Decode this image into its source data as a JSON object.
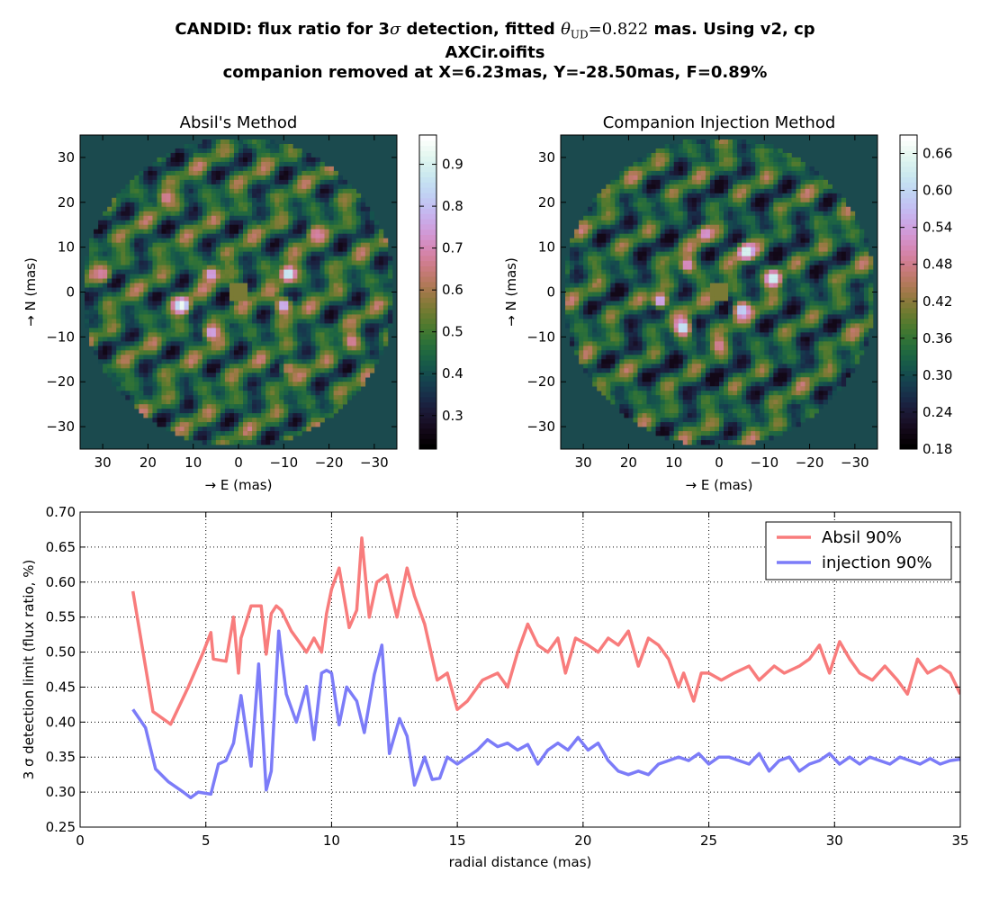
{
  "suptitle": {
    "line1_prefix": "CANDID: flux ratio for 3",
    "line1_sigma": "σ",
    "line1_mid": " detection, fitted ",
    "line1_theta": "θ",
    "line1_sub": "UD",
    "line1_eq": "=0.822",
    "line1_suffix": " mas. Using v2, cp",
    "line2": "AXCir.oifits",
    "line3": "companion removed at X=6.23mas, Y=-28.50mas, F=0.89%"
  },
  "colors": {
    "absil": "#f87c7c",
    "injection": "#7c7cf8",
    "map_background": "#1b4a4e"
  },
  "chart_data": [
    {
      "type": "heatmap",
      "title": "Absil's Method",
      "xlabel": "→ E (mas)",
      "ylabel": "→ N (mas)",
      "xlim": [
        35,
        -35
      ],
      "ylim": [
        -35,
        35
      ],
      "xticks": [
        30,
        20,
        10,
        0,
        -10,
        -20,
        -30
      ],
      "yticks": [
        30,
        20,
        10,
        0,
        -10,
        -20,
        -30
      ],
      "colorbar": {
        "ticks": [
          0.3,
          0.4,
          0.5,
          0.6,
          0.7,
          0.8,
          0.9
        ],
        "range": [
          0.22,
          0.97
        ]
      },
      "colormap": "cubehelix",
      "peaks": [
        {
          "x": 12.5,
          "y": -3,
          "value": 0.97
        },
        {
          "x": -11,
          "y": 4,
          "value": 0.95
        },
        {
          "x": 6,
          "y": 4,
          "value": 0.8
        },
        {
          "x": 6,
          "y": -9,
          "value": 0.8
        },
        {
          "x": -10,
          "y": -3,
          "value": 0.85
        },
        {
          "x": -17,
          "y": 13,
          "value": 0.7
        },
        {
          "x": 16,
          "y": 21,
          "value": 0.7
        },
        {
          "x": 30,
          "y": 4,
          "value": 0.7
        },
        {
          "x": -25,
          "y": -11,
          "value": 0.7
        },
        {
          "x": -11,
          "y": -17,
          "value": 0.65
        }
      ]
    },
    {
      "type": "heatmap",
      "title": "Companion Injection Method",
      "xlabel": "→ E (mas)",
      "ylabel": "→ N (mas)",
      "xlim": [
        35,
        -35
      ],
      "ylim": [
        -35,
        35
      ],
      "xticks": [
        30,
        20,
        10,
        0,
        -10,
        -20,
        -30
      ],
      "yticks": [
        30,
        20,
        10,
        0,
        -10,
        -20,
        -30
      ],
      "colorbar": {
        "ticks": [
          0.18,
          0.24,
          0.3,
          0.36,
          0.42,
          0.48,
          0.54,
          0.6,
          0.66
        ],
        "range": [
          0.18,
          0.69
        ]
      },
      "colormap": "cubehelix",
      "peaks": [
        {
          "x": -6,
          "y": 9,
          "value": 0.69
        },
        {
          "x": -12,
          "y": 3,
          "value": 0.68
        },
        {
          "x": 8,
          "y": -8,
          "value": 0.66
        },
        {
          "x": -5,
          "y": -4,
          "value": 0.62
        },
        {
          "x": 13,
          "y": -2,
          "value": 0.6
        },
        {
          "x": 7,
          "y": 6,
          "value": 0.55
        },
        {
          "x": 3,
          "y": 13,
          "value": 0.55
        },
        {
          "x": 0,
          "y": -12,
          "value": 0.5
        }
      ]
    },
    {
      "type": "line",
      "xlabel": "radial distance (mas)",
      "ylabel": "3 σ detection limit (flux ratio, %)",
      "xlim": [
        0,
        35
      ],
      "ylim": [
        0.25,
        0.7
      ],
      "xticks": [
        0,
        5,
        10,
        15,
        20,
        25,
        30,
        35
      ],
      "yticks": [
        0.25,
        0.3,
        0.35,
        0.4,
        0.45,
        0.5,
        0.55,
        0.6,
        0.65,
        0.7
      ],
      "grid": true,
      "legend": "top-right",
      "series": [
        {
          "name": "Absil 90%",
          "color": "#f87c7c",
          "x": [
            2.1,
            2.9,
            3.6,
            4.3,
            4.9,
            5.2,
            5.3,
            5.8,
            6.1,
            6.3,
            6.4,
            6.8,
            7.2,
            7.4,
            7.6,
            7.8,
            8.0,
            8.4,
            9.0,
            9.3,
            9.6,
            9.8,
            10.0,
            10.3,
            10.7,
            11.0,
            11.2,
            11.5,
            11.8,
            12.2,
            12.6,
            13.0,
            13.3,
            13.7,
            14.2,
            14.6,
            15.0,
            15.4,
            16.0,
            16.6,
            17.0,
            17.4,
            17.8,
            18.2,
            18.6,
            19.0,
            19.3,
            19.7,
            20.2,
            20.6,
            21.0,
            21.4,
            21.8,
            22.2,
            22.6,
            23.0,
            23.4,
            23.8,
            24.0,
            24.4,
            24.7,
            25.0,
            25.5,
            26.0,
            26.6,
            27.0,
            27.6,
            28.0,
            28.6,
            29.0,
            29.4,
            29.8,
            30.2,
            30.6,
            31.0,
            31.5,
            32.0,
            32.5,
            32.9,
            33.3,
            33.7,
            34.2,
            34.6,
            35.0
          ],
          "y": [
            0.587,
            0.415,
            0.397,
            0.45,
            0.5,
            0.528,
            0.49,
            0.487,
            0.55,
            0.47,
            0.52,
            0.566,
            0.566,
            0.497,
            0.555,
            0.566,
            0.56,
            0.53,
            0.5,
            0.52,
            0.5,
            0.555,
            0.59,
            0.62,
            0.535,
            0.56,
            0.663,
            0.55,
            0.6,
            0.61,
            0.55,
            0.62,
            0.58,
            0.54,
            0.46,
            0.47,
            0.418,
            0.43,
            0.46,
            0.47,
            0.45,
            0.5,
            0.54,
            0.51,
            0.5,
            0.52,
            0.47,
            0.52,
            0.51,
            0.5,
            0.52,
            0.51,
            0.53,
            0.48,
            0.52,
            0.51,
            0.49,
            0.45,
            0.47,
            0.43,
            0.47,
            0.47,
            0.46,
            0.47,
            0.48,
            0.46,
            0.48,
            0.47,
            0.48,
            0.49,
            0.51,
            0.47,
            0.515,
            0.49,
            0.47,
            0.46,
            0.48,
            0.46,
            0.44,
            0.49,
            0.47,
            0.48,
            0.47,
            0.44
          ]
        },
        {
          "name": "injection 90%",
          "color": "#7c7cf8",
          "x": [
            2.1,
            2.6,
            3.0,
            3.5,
            4.1,
            4.4,
            4.7,
            5.2,
            5.5,
            5.8,
            6.1,
            6.4,
            6.8,
            7.1,
            7.4,
            7.6,
            7.9,
            8.2,
            8.6,
            9.0,
            9.3,
            9.6,
            9.8,
            10.0,
            10.3,
            10.6,
            11.0,
            11.3,
            11.7,
            12.0,
            12.3,
            12.7,
            13.0,
            13.3,
            13.7,
            14.0,
            14.3,
            14.6,
            15.0,
            15.4,
            15.8,
            16.2,
            16.6,
            17.0,
            17.4,
            17.8,
            18.2,
            18.6,
            19.0,
            19.4,
            19.8,
            20.2,
            20.6,
            21.0,
            21.4,
            21.8,
            22.2,
            22.6,
            23.0,
            23.4,
            23.8,
            24.2,
            24.6,
            25.0,
            25.4,
            25.8,
            26.2,
            26.6,
            27.0,
            27.4,
            27.8,
            28.2,
            28.6,
            29.0,
            29.4,
            29.8,
            30.2,
            30.6,
            31.0,
            31.4,
            31.8,
            32.2,
            32.6,
            33.0,
            33.4,
            33.8,
            34.2,
            34.6,
            35.0
          ],
          "y": [
            0.418,
            0.392,
            0.333,
            0.315,
            0.3,
            0.292,
            0.3,
            0.297,
            0.34,
            0.345,
            0.37,
            0.438,
            0.337,
            0.483,
            0.303,
            0.33,
            0.53,
            0.44,
            0.4,
            0.451,
            0.375,
            0.47,
            0.474,
            0.47,
            0.396,
            0.45,
            0.43,
            0.385,
            0.468,
            0.51,
            0.355,
            0.405,
            0.38,
            0.31,
            0.35,
            0.318,
            0.32,
            0.35,
            0.34,
            0.35,
            0.36,
            0.375,
            0.365,
            0.37,
            0.36,
            0.368,
            0.34,
            0.36,
            0.37,
            0.36,
            0.378,
            0.36,
            0.37,
            0.345,
            0.33,
            0.325,
            0.33,
            0.325,
            0.34,
            0.345,
            0.35,
            0.345,
            0.355,
            0.34,
            0.35,
            0.35,
            0.345,
            0.34,
            0.355,
            0.33,
            0.345,
            0.35,
            0.33,
            0.34,
            0.345,
            0.355,
            0.34,
            0.35,
            0.34,
            0.35,
            0.345,
            0.34,
            0.35,
            0.345,
            0.34,
            0.348,
            0.34,
            0.345,
            0.347
          ]
        }
      ]
    }
  ]
}
